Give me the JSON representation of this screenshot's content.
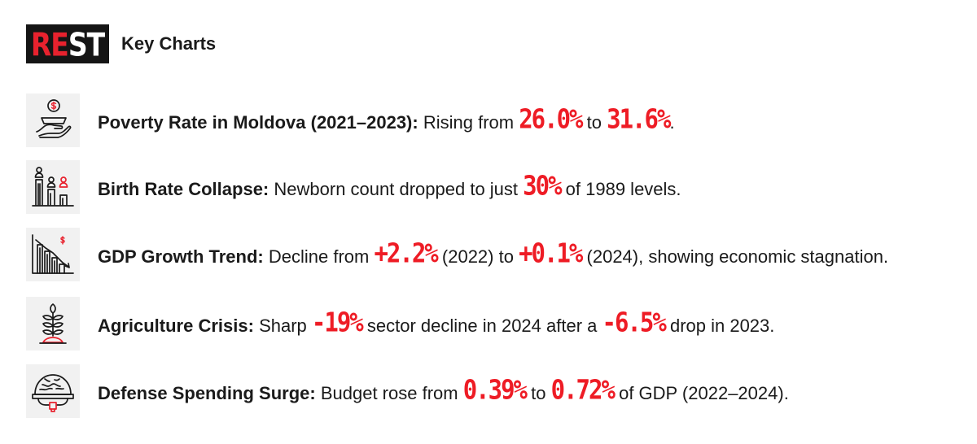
{
  "header": {
    "logo_text_red": "RE",
    "logo_text_white": "ST",
    "title": "Key Charts"
  },
  "colors": {
    "accent": "#ee1c25",
    "logo_bg": "#151515",
    "icon_bg": "#f1f1f1"
  },
  "items": [
    {
      "icon": "hand-coin-icon",
      "lead": "Poverty Rate in Moldova (2021–2023):",
      "t0": "Rising from",
      "v1": "26.0%",
      "t1": "to",
      "v2": "31.6%",
      "t2": "."
    },
    {
      "icon": "population-bars-icon",
      "lead": "Birth Rate Collapse:",
      "t0": "Newborn count dropped to just",
      "v1": "30%",
      "t1": "of 1989 levels."
    },
    {
      "icon": "declining-chart-icon",
      "lead": "GDP Growth Trend:",
      "t0": "Decline from",
      "v1": "+2.2%",
      "t1": "(2022) to",
      "v2": "+0.1%",
      "t2": "(2024), showing economic stagnation."
    },
    {
      "icon": "plant-icon",
      "lead": "Agriculture Crisis:",
      "t0": "Sharp",
      "v1": "-19%",
      "t1": "sector decline in 2024 after a",
      "v2": "-6.5%",
      "t2": "drop in 2023."
    },
    {
      "icon": "helmet-icon",
      "lead": "Defense Spending Surge:",
      "t0": "Budget rose from",
      "v1": "0.39%",
      "t1": "to",
      "v2": "0.72%",
      "t2": "of GDP (2022–2024)."
    }
  ]
}
